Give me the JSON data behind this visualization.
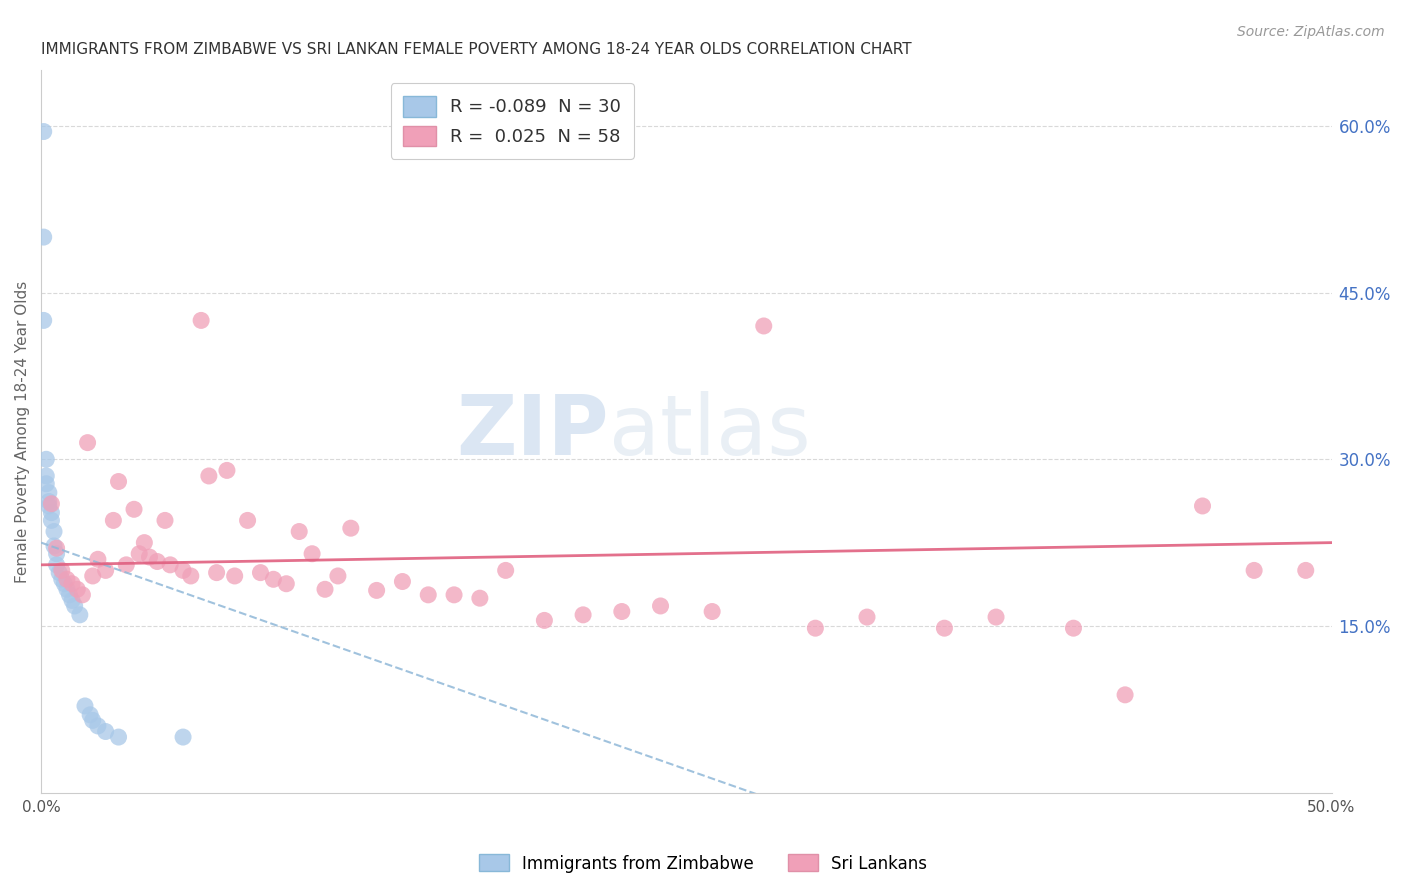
{
  "title": "IMMIGRANTS FROM ZIMBABWE VS SRI LANKAN FEMALE POVERTY AMONG 18-24 YEAR OLDS CORRELATION CHART",
  "source": "Source: ZipAtlas.com",
  "ylabel": "Female Poverty Among 18-24 Year Olds",
  "xlim": [
    0.0,
    0.5
  ],
  "ylim": [
    0.0,
    0.65
  ],
  "yticks": [
    0.15,
    0.3,
    0.45,
    0.6
  ],
  "ytick_labels": [
    "15.0%",
    "30.0%",
    "45.0%",
    "60.0%"
  ],
  "series_blue": {
    "name": "Immigrants from Zimbabwe",
    "color": "#a8c8e8",
    "x": [
      0.001,
      0.001,
      0.001,
      0.002,
      0.002,
      0.002,
      0.003,
      0.003,
      0.003,
      0.004,
      0.004,
      0.005,
      0.005,
      0.006,
      0.006,
      0.007,
      0.008,
      0.009,
      0.01,
      0.011,
      0.012,
      0.013,
      0.015,
      0.017,
      0.019,
      0.02,
      0.022,
      0.025,
      0.03,
      0.055
    ],
    "y": [
      0.595,
      0.5,
      0.425,
      0.3,
      0.285,
      0.278,
      0.27,
      0.262,
      0.258,
      0.252,
      0.245,
      0.235,
      0.222,
      0.215,
      0.205,
      0.198,
      0.192,
      0.188,
      0.183,
      0.178,
      0.173,
      0.168,
      0.16,
      0.078,
      0.07,
      0.065,
      0.06,
      0.055,
      0.05,
      0.05
    ]
  },
  "series_pink": {
    "name": "Sri Lankans",
    "color": "#f0a0b8",
    "x": [
      0.004,
      0.006,
      0.008,
      0.01,
      0.012,
      0.014,
      0.016,
      0.018,
      0.02,
      0.022,
      0.025,
      0.028,
      0.03,
      0.033,
      0.036,
      0.038,
      0.04,
      0.042,
      0.045,
      0.048,
      0.05,
      0.055,
      0.058,
      0.062,
      0.065,
      0.068,
      0.072,
      0.075,
      0.08,
      0.085,
      0.09,
      0.095,
      0.1,
      0.105,
      0.11,
      0.115,
      0.12,
      0.13,
      0.14,
      0.15,
      0.16,
      0.17,
      0.18,
      0.195,
      0.21,
      0.225,
      0.24,
      0.26,
      0.28,
      0.3,
      0.32,
      0.35,
      0.37,
      0.4,
      0.42,
      0.45,
      0.47,
      0.49
    ],
    "y": [
      0.26,
      0.22,
      0.2,
      0.192,
      0.188,
      0.183,
      0.178,
      0.315,
      0.195,
      0.21,
      0.2,
      0.245,
      0.28,
      0.205,
      0.255,
      0.215,
      0.225,
      0.212,
      0.208,
      0.245,
      0.205,
      0.2,
      0.195,
      0.425,
      0.285,
      0.198,
      0.29,
      0.195,
      0.245,
      0.198,
      0.192,
      0.188,
      0.235,
      0.215,
      0.183,
      0.195,
      0.238,
      0.182,
      0.19,
      0.178,
      0.178,
      0.175,
      0.2,
      0.155,
      0.16,
      0.163,
      0.168,
      0.163,
      0.42,
      0.148,
      0.158,
      0.148,
      0.158,
      0.148,
      0.088,
      0.258,
      0.2,
      0.2
    ]
  },
  "blue_trend": {
    "x_start": 0.0,
    "x_end": 0.3,
    "style": "dashed",
    "color": "#90b8d8"
  },
  "pink_trend": {
    "x_start": 0.0,
    "x_end": 0.5,
    "style": "solid",
    "color": "#e06080"
  },
  "watermark_zip": "ZIP",
  "watermark_atlas": "atlas",
  "background_color": "#ffffff",
  "grid_color": "#d0d0d0",
  "title_color": "#333333",
  "right_tick_color": "#4472c4",
  "source_color": "#999999",
  "legend_r_blue": "R = -0.089",
  "legend_n_blue": "N = 30",
  "legend_r_pink": "R =  0.025",
  "legend_n_pink": "N = 58"
}
